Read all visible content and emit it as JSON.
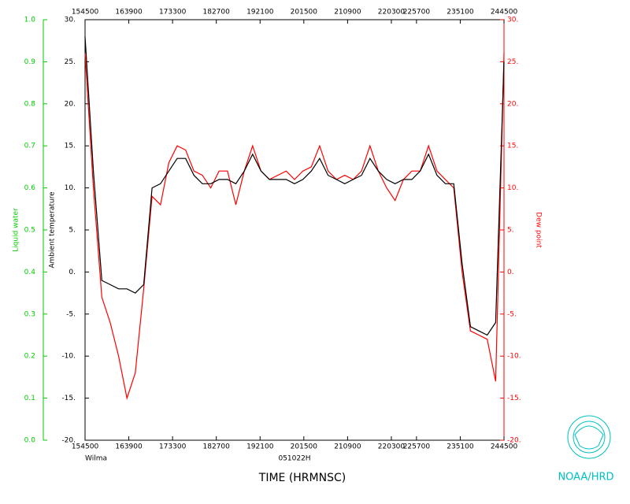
{
  "chart_data": {
    "type": "line",
    "title": "TIME (HRMNSC)",
    "subtitle": "051022H",
    "annotation": "Wilma",
    "credit": "NOAA/HRD",
    "ylabel": "Ambient temperature",
    "y2label": "Dew point",
    "y3label": "Liquid water",
    "xlim": [
      154500,
      244500
    ],
    "xticks": [
      154500,
      163900,
      173300,
      182700,
      192100,
      201500,
      210900,
      220300,
      225700,
      235100,
      244500
    ],
    "ylim": [
      -20,
      30
    ],
    "yticks": [
      {
        "value": -20,
        "label": "-20."
      },
      {
        "value": -15,
        "label": "-15."
      },
      {
        "value": -10,
        "label": "-10."
      },
      {
        "value": -5,
        "label": "-5."
      },
      {
        "value": 0,
        "label": "0."
      },
      {
        "value": 5,
        "label": "5."
      },
      {
        "value": 10,
        "label": "10."
      },
      {
        "value": 15,
        "label": "15."
      },
      {
        "value": 20,
        "label": "20."
      },
      {
        "value": 25,
        "label": "25."
      },
      {
        "value": 30,
        "label": "30."
      }
    ],
    "y2lim": [
      -20,
      30
    ],
    "y2ticks": [
      {
        "value": -20,
        "label": "-20."
      },
      {
        "value": -15,
        "label": "-15."
      },
      {
        "value": -10,
        "label": "-10."
      },
      {
        "value": -5,
        "label": "-5."
      },
      {
        "value": 0,
        "label": "0."
      },
      {
        "value": 5,
        "label": "5."
      },
      {
        "value": 10,
        "label": "10."
      },
      {
        "value": 15,
        "label": "15."
      },
      {
        "value": 20,
        "label": "20."
      },
      {
        "value": 25,
        "label": "25."
      },
      {
        "value": 30,
        "label": "30."
      }
    ],
    "y3lim": [
      0,
      1
    ],
    "y3ticks": [
      {
        "value": 0,
        "label": "0.0"
      },
      0.1,
      0.2,
      0.3,
      0.4,
      0.5,
      0.6,
      0.7,
      0.8,
      0.9,
      {
        "value": 1,
        "label": "1.0"
      }
    ],
    "y3color": "#00cc00",
    "x": [
      154500,
      156300,
      158100,
      159900,
      161700,
      163500,
      165300,
      167100,
      168900,
      170700,
      172500,
      174300,
      176100,
      177900,
      179700,
      181500,
      183300,
      185100,
      186900,
      188700,
      190500,
      192300,
      194100,
      195900,
      197700,
      199500,
      201300,
      203100,
      204900,
      206700,
      208500,
      210300,
      212100,
      213900,
      215700,
      217500,
      219300,
      221100,
      222900,
      224700,
      226500,
      228300,
      230100,
      231900,
      233700,
      235500,
      237300,
      239100,
      240900,
      242700,
      244500
    ],
    "series": [
      {
        "name": "Ambient temperature",
        "color": "#000000",
        "axis": "y",
        "values": [
          28,
          12,
          -1,
          -1.5,
          -2,
          -2,
          -2.5,
          -1.5,
          10,
          10.5,
          12,
          13.5,
          13.5,
          11.5,
          10.5,
          10.5,
          11,
          11,
          10.5,
          12,
          14,
          12,
          11,
          11,
          11,
          10.5,
          11,
          12,
          13.5,
          11.5,
          11,
          10.5,
          11,
          11.5,
          13.5,
          12,
          11,
          10.5,
          11,
          11,
          12,
          14,
          11.5,
          10.5,
          10.5,
          1,
          -6.5,
          -7,
          -7.5,
          -6,
          25
        ]
      },
      {
        "name": "Dew point",
        "color": "#ff0000",
        "axis": "y2",
        "values": [
          26,
          10,
          -3,
          -6,
          -10,
          -15,
          -12,
          -2,
          9,
          8,
          13,
          15,
          14.5,
          12,
          11.5,
          10,
          12,
          12,
          8,
          12,
          15,
          12,
          11,
          11.5,
          12,
          11,
          12,
          12.5,
          15,
          12,
          11,
          11.5,
          11,
          12,
          15,
          12,
          10,
          8.5,
          11,
          12,
          12,
          15,
          12,
          11,
          10,
          0,
          -7,
          -7.5,
          -8,
          -13,
          26
        ]
      }
    ]
  }
}
